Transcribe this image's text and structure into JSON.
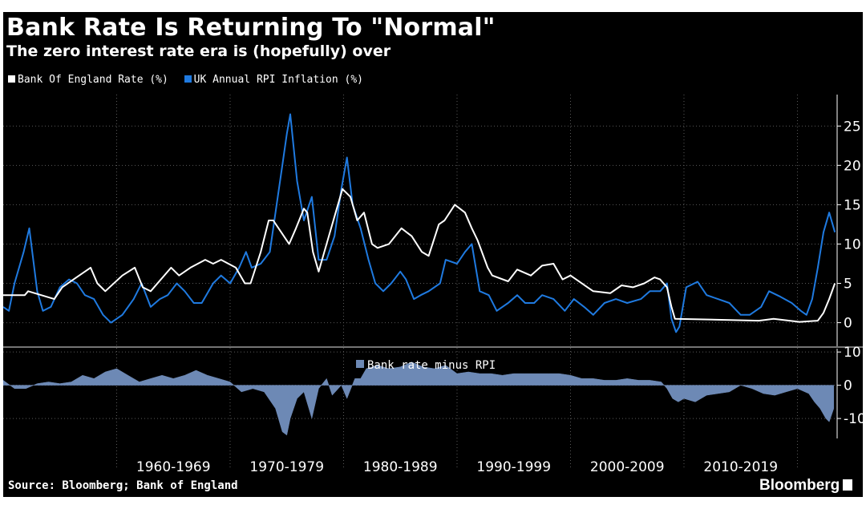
{
  "header": {
    "title": "Bank Rate Is Returning To \"Normal\"",
    "subtitle": "The zero interest rate era is (hopefully) over"
  },
  "legend": [
    {
      "label": "Bank Of England Rate (%)",
      "color": "#ffffff"
    },
    {
      "label": "UK Annual RPI Inflation (%)",
      "color": "#1f7ae0"
    }
  ],
  "footer": {
    "source": "Source: Bloomberg; Bank of England",
    "brand": "Bloomberg"
  },
  "chart_data": [
    {
      "type": "line",
      "ylim": [
        -3,
        29
      ],
      "y_ticks": [
        0,
        5,
        10,
        15,
        20,
        25
      ],
      "x_range": [
        1950,
        2023.5
      ],
      "x_ticks": [
        "1960-1969",
        "1970-1979",
        "1980-1989",
        "1990-1999",
        "2000-2009",
        "2010-2019"
      ],
      "grid": true,
      "legend_position": "top-left",
      "series": [
        {
          "name": "Bank Of England Rate (%)",
          "color": "#ffffff",
          "x": [
            1950,
            1951.9,
            1952.2,
            1954.5,
            1955.2,
            1956.2,
            1957.7,
            1958.3,
            1959,
            1960.5,
            1961.6,
            1962.3,
            1963,
            1964.8,
            1965.5,
            1966.5,
            1967.8,
            1968.5,
            1969.2,
            1970.5,
            1971.3,
            1971.8,
            1972.7,
            1973.4,
            1973.8,
            1974.5,
            1975.2,
            1975.8,
            1976.5,
            1976.8,
            1977.3,
            1977.8,
            1978.5,
            1979.3,
            1979.9,
            1980.6,
            1981.2,
            1981.8,
            1982.5,
            1983,
            1984,
            1985.1,
            1986,
            1986.9,
            1987.5,
            1988.4,
            1988.9,
            1989.8,
            1990.7,
            1991.3,
            1991.8,
            1992.7,
            1993.1,
            1994.5,
            1995.3,
            1996.5,
            1997.5,
            1998.5,
            1999.3,
            2000,
            2001.5,
            2002,
            2003.5,
            2004.5,
            2005.5,
            2006.5,
            2007.4,
            2007.9,
            2008.5,
            2008.9,
            2009.2,
            2016.6,
            2017.9,
            2020.2,
            2021.8,
            2022.3,
            2022.8,
            2023.3
          ],
          "values": [
            3.5,
            3.5,
            4,
            3,
            4.5,
            5.5,
            7,
            5,
            4,
            6,
            7,
            4.5,
            4,
            7,
            6,
            7,
            8,
            7.5,
            8,
            7,
            5,
            5,
            9,
            13,
            13,
            11.5,
            10,
            12,
            14.5,
            14,
            9,
            6.5,
            10,
            14,
            17,
            16,
            13,
            14,
            10,
            9.5,
            10,
            12,
            11,
            9,
            8.5,
            12.5,
            13,
            15,
            14,
            12,
            10.5,
            7,
            6,
            5.25,
            6.75,
            6,
            7.25,
            7.5,
            5.5,
            6,
            4.5,
            4,
            3.75,
            4.75,
            4.5,
            5,
            5.75,
            5.5,
            4.5,
            2,
            0.5,
            0.25,
            0.5,
            0.1,
            0.25,
            1.25,
            3,
            5
          ]
        },
        {
          "name": "UK Annual RPI Inflation (%)",
          "color": "#1f7ae0",
          "x": [
            1950,
            1950.5,
            1951,
            1951.8,
            1952.3,
            1953,
            1953.5,
            1954.2,
            1955,
            1955.8,
            1956.5,
            1957.2,
            1958,
            1958.8,
            1959.5,
            1960.5,
            1961.5,
            1962.2,
            1963,
            1963.8,
            1964.5,
            1965.3,
            1966,
            1966.8,
            1967.5,
            1968.5,
            1969.2,
            1970,
            1970.8,
            1971.4,
            1971.9,
            1972.7,
            1973.5,
            1974.2,
            1974.6,
            1975.0,
            1975.3,
            1975.9,
            1976.5,
            1977.2,
            1977.8,
            1978.5,
            1979.2,
            1979.8,
            1980.3,
            1980.8,
            1981.5,
            1982.2,
            1982.8,
            1983.5,
            1984.2,
            1985,
            1985.5,
            1986.2,
            1986.8,
            1987.5,
            1988.5,
            1989,
            1990,
            1990.7,
            1991.3,
            1992,
            1992.8,
            1993.5,
            1994.5,
            1995.3,
            1996,
            1996.8,
            1997.5,
            1998.5,
            1999.5,
            2000.3,
            2001.2,
            2002,
            2003,
            2004,
            2005,
            2006.2,
            2007,
            2007.9,
            2008.5,
            2008.9,
            2009.3,
            2009.6,
            2010.2,
            2011.2,
            2012,
            2013,
            2014,
            2015,
            2015.8,
            2016.8,
            2017.5,
            2018.5,
            2019.5,
            2020.3,
            2020.8,
            2021.3,
            2021.8,
            2022.3,
            2022.8,
            2023.3
          ],
          "values": [
            2,
            1.5,
            5,
            9,
            12,
            4,
            1.5,
            2,
            4.5,
            5.5,
            5,
            3.5,
            3,
            1,
            0,
            1,
            3,
            5,
            2,
            3,
            3.5,
            5,
            4,
            2.5,
            2.5,
            5,
            6,
            5,
            7,
            9,
            7,
            7.5,
            9,
            16,
            20,
            24,
            26.5,
            18,
            13,
            16,
            8,
            8,
            11,
            17,
            21,
            15,
            12,
            8,
            5,
            4,
            5,
            6.5,
            5.5,
            3,
            3.5,
            4,
            5,
            8,
            7.5,
            9,
            10,
            4,
            3.5,
            1.5,
            2.5,
            3.5,
            2.5,
            2.5,
            3.5,
            3,
            1.5,
            3,
            2,
            1,
            2.5,
            3,
            2.5,
            3,
            4,
            4,
            5,
            0.5,
            -1.2,
            -0.5,
            4.5,
            5.2,
            3.5,
            3,
            2.5,
            1,
            1,
            2,
            4,
            3.3,
            2.5,
            1.5,
            1,
            3,
            7,
            11.5,
            14,
            11.5
          ]
        }
      ]
    },
    {
      "type": "area",
      "ylim": [
        -16,
        11
      ],
      "y_ticks": [
        10,
        0,
        -10
      ],
      "series": [
        {
          "name": "Bank rate minus RPI",
          "color": "#6d89b5",
          "x": [
            1950,
            1951,
            1952,
            1953,
            1954,
            1955,
            1956,
            1957,
            1958,
            1959,
            1960,
            1961,
            1962,
            1963,
            1964,
            1965,
            1966,
            1967,
            1968,
            1969,
            1970,
            1971,
            1972,
            1973,
            1974,
            1974.6,
            1975,
            1975.3,
            1975.9,
            1976.5,
            1977.2,
            1977.8,
            1978.5,
            1979,
            1979.8,
            1980.3,
            1981,
            1981.5,
            1982,
            1983,
            1984,
            1985,
            1986,
            1987,
            1988,
            1989,
            1990,
            1991,
            1992,
            1993,
            1994,
            1995,
            1996,
            1997,
            1998,
            1999,
            2000,
            2001,
            2002,
            2003,
            2004,
            2005,
            2006,
            2007,
            2008,
            2008.5,
            2009,
            2009.5,
            2010,
            2011,
            2012,
            2013,
            2014,
            2015,
            2016,
            2017,
            2018,
            2019,
            2020,
            2021,
            2021.5,
            2022,
            2022.5,
            2022.8,
            2023.2
          ],
          "values": [
            1.5,
            -1,
            -1,
            0.5,
            1,
            0.5,
            1,
            3,
            2,
            4,
            5,
            3,
            1,
            2,
            3,
            2,
            3,
            4.5,
            3,
            2,
            1,
            -2,
            -1,
            -2,
            -7,
            -14,
            -15,
            -10,
            -4,
            -2,
            -10,
            -1,
            2,
            -3,
            0,
            -4,
            2,
            2,
            5,
            6,
            5,
            5.5,
            7,
            5.5,
            5,
            6,
            3.5,
            4,
            3.5,
            3.5,
            3,
            3.5,
            3.5,
            3.5,
            3.5,
            3.5,
            3,
            2,
            2,
            1.5,
            1.5,
            2,
            1.5,
            1.5,
            1,
            -1,
            -4,
            -5,
            -4,
            -5,
            -3,
            -2.5,
            -2,
            0,
            -1,
            -2.5,
            -3,
            -2,
            -1,
            -2.5,
            -5,
            -7,
            -10,
            -11,
            -7
          ]
        }
      ]
    }
  ]
}
